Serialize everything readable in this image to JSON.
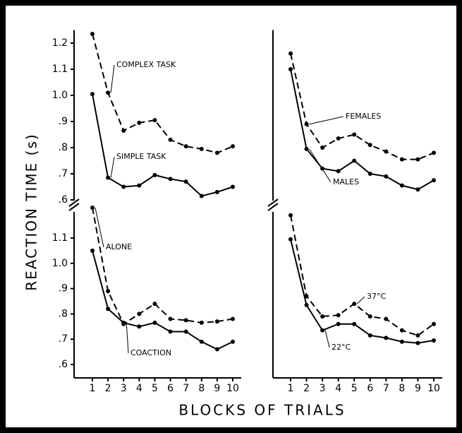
{
  "y_label": "REACTION TIME (s)",
  "x_label": "BLOCKS OF TRIALS",
  "chart_data": [
    {
      "type": "line",
      "x": [
        1,
        2,
        3,
        4,
        5,
        6,
        7,
        8,
        9,
        10
      ],
      "ylim": [
        0.58,
        1.25
      ],
      "yticks": [
        {
          "value": 0.6,
          "label": ".6"
        },
        {
          "value": 0.7,
          "label": ".7"
        },
        {
          "value": 0.8,
          "label": ".8"
        },
        {
          "value": 0.9,
          "label": ".9"
        },
        {
          "value": 1.0,
          "label": "1.0"
        },
        {
          "value": 1.1,
          "label": "1.1"
        },
        {
          "value": 1.2,
          "label": "1.2"
        }
      ],
      "series": [
        {
          "name": "COMPLEX TASK",
          "dashed": true,
          "color": "#000000",
          "values": [
            1.235,
            1.01,
            0.865,
            0.895,
            0.905,
            0.83,
            0.805,
            0.795,
            0.78,
            0.805
          ]
        },
        {
          "name": "SIMPLE TASK",
          "dashed": false,
          "color": "#000000",
          "values": [
            1.005,
            0.685,
            0.65,
            0.655,
            0.695,
            0.68,
            0.67,
            0.615,
            0.63,
            0.65
          ]
        }
      ]
    },
    {
      "type": "line",
      "x": [
        1,
        2,
        3,
        4,
        5,
        6,
        7,
        8,
        9,
        10
      ],
      "ylim": [
        0.58,
        1.25
      ],
      "series": [
        {
          "name": "FEMALES",
          "dashed": true,
          "color": "#000000",
          "values": [
            1.16,
            0.89,
            0.8,
            0.835,
            0.85,
            0.81,
            0.785,
            0.755,
            0.755,
            0.78
          ]
        },
        {
          "name": "MALES",
          "dashed": false,
          "color": "#000000",
          "values": [
            1.1,
            0.795,
            0.72,
            0.71,
            0.75,
            0.7,
            0.69,
            0.655,
            0.64,
            0.675
          ]
        }
      ]
    },
    {
      "type": "line",
      "x": [
        1,
        2,
        3,
        4,
        5,
        6,
        7,
        8,
        9,
        10
      ],
      "ylim": [
        0.58,
        1.22
      ],
      "xlim": [
        0.6,
        10.4
      ],
      "xticks": [
        1,
        2,
        3,
        4,
        5,
        6,
        7,
        8,
        9,
        10
      ],
      "yticks": [
        {
          "value": 0.6,
          "label": ".6"
        },
        {
          "value": 0.7,
          "label": ".7"
        },
        {
          "value": 0.8,
          "label": ".8"
        },
        {
          "value": 0.9,
          "label": ".9"
        },
        {
          "value": 1.0,
          "label": "1.0"
        },
        {
          "value": 1.1,
          "label": "1.1"
        }
      ],
      "series": [
        {
          "name": "ALONE",
          "dashed": true,
          "color": "#000000",
          "values": [
            1.22,
            0.89,
            0.76,
            0.8,
            0.84,
            0.78,
            0.775,
            0.765,
            0.77,
            0.78
          ]
        },
        {
          "name": "COACTION",
          "dashed": false,
          "color": "#000000",
          "values": [
            1.05,
            0.82,
            0.765,
            0.75,
            0.765,
            0.73,
            0.73,
            0.69,
            0.66,
            0.69
          ]
        }
      ]
    },
    {
      "type": "line",
      "x": [
        1,
        2,
        3,
        4,
        5,
        6,
        7,
        8,
        9,
        10
      ],
      "ylim": [
        0.58,
        1.22
      ],
      "xlim": [
        0.6,
        10.4
      ],
      "xticks": [
        1,
        2,
        3,
        4,
        5,
        6,
        7,
        8,
        9,
        10
      ],
      "series": [
        {
          "name": "37°C",
          "dashed": true,
          "color": "#000000",
          "values": [
            1.19,
            0.87,
            0.79,
            0.795,
            0.84,
            0.79,
            0.78,
            0.735,
            0.715,
            0.76
          ]
        },
        {
          "name": "22°C",
          "dashed": false,
          "color": "#000000",
          "values": [
            1.095,
            0.835,
            0.735,
            0.76,
            0.76,
            0.715,
            0.705,
            0.69,
            0.685,
            0.695
          ]
        }
      ]
    }
  ]
}
